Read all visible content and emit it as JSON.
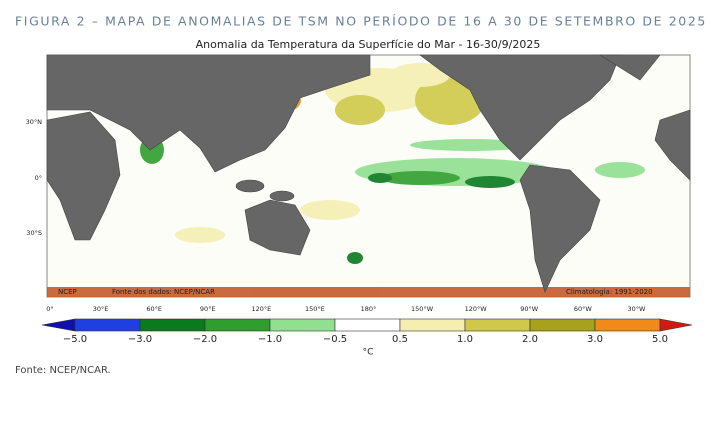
{
  "figure_title": "FIGURA 2 – MAPA DE ANOMALIAS DE TSM NO PERÍODO DE 16 A 30 DE SETEMBRO DE 2025",
  "map": {
    "title": "Anomalia da Temperatura da Superfície do Mar - 16-30/9/2025",
    "lat_labels": [
      "30°N",
      "0°",
      "30°S"
    ],
    "lon_labels": [
      "0°",
      "30°E",
      "60°E",
      "90°E",
      "120°E",
      "150°E",
      "180°",
      "150°W",
      "120°W",
      "90°W",
      "60°W",
      "30°W"
    ],
    "credit_left": "NCEP",
    "source_text": "Fonte dos dados: NCEP/NCAR",
    "climatology": "Climatologia: 1991-2020"
  },
  "colorbar": {
    "labels": [
      "−5.0",
      "−3.0",
      "−2.0",
      "−1.0",
      "−0.5",
      "0.5",
      "1.0",
      "2.0",
      "3.0",
      "5.0"
    ],
    "unit": "°C",
    "colors": [
      "#1010b0",
      "#1f3fe0",
      "#0a7a1e",
      "#2e9e2e",
      "#90e090",
      "#ffffff",
      "#f4efb0",
      "#cfc84a",
      "#a6a21e",
      "#f08a18",
      "#d41a10"
    ]
  },
  "footnote": "Fonte: NCEP/NCAR."
}
